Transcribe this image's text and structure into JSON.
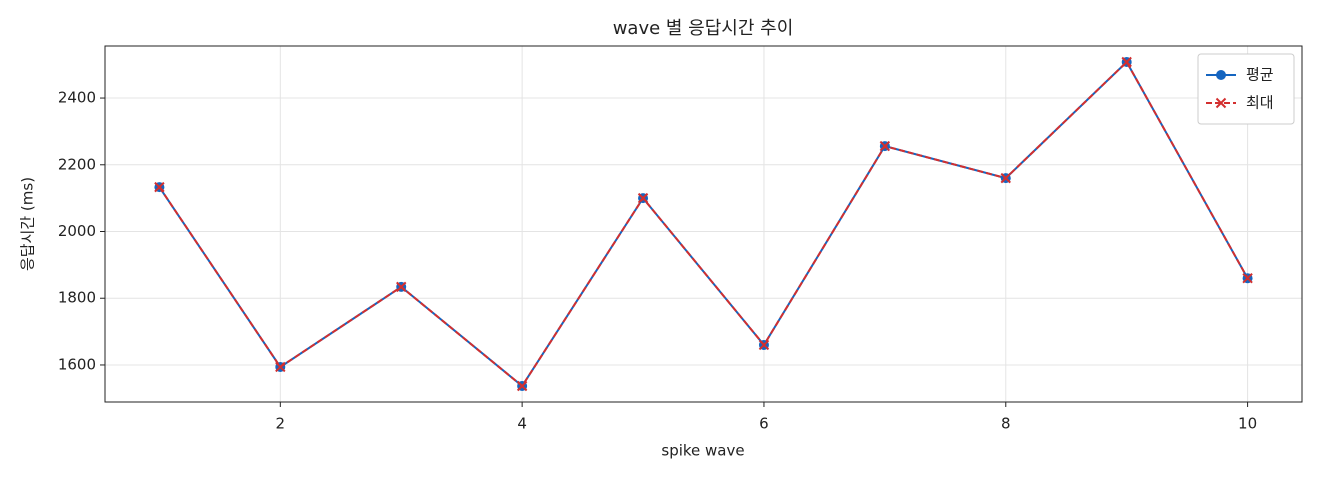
{
  "chart_data": {
    "type": "line",
    "title": "wave 별 응답시간 추이",
    "x_label": "spike wave",
    "y_label": "응답시간 (ms)",
    "x": [
      1,
      2,
      3,
      4,
      5,
      6,
      7,
      8,
      9,
      10
    ],
    "series": [
      {
        "name": "평균",
        "color": "#1565c0",
        "marker": "circle",
        "linestyle": "solid",
        "values": [
          2133,
          1594,
          1834,
          1537,
          2100,
          1660,
          2256,
          2160,
          2508,
          1860
        ]
      },
      {
        "name": "최대",
        "color": "#d32f2f",
        "marker": "x",
        "linestyle": "dashed",
        "values": [
          2133,
          1594,
          1834,
          1537,
          2100,
          1660,
          2256,
          2160,
          2508,
          1860
        ]
      }
    ],
    "xlim": [
      0.55,
      10.45
    ],
    "ylim": [
      1489,
      2556
    ],
    "xticks": [
      2,
      4,
      6,
      8,
      10
    ],
    "yticks": [
      1600,
      1800,
      2000,
      2200,
      2400
    ],
    "grid": true,
    "legend": "upper right"
  }
}
